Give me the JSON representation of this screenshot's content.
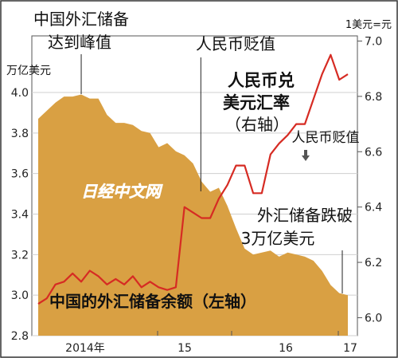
{
  "chart_data": {
    "type": "area+line",
    "left_axis": {
      "unit_label": "万亿美元",
      "ticks": [
        "4.0",
        "3.8",
        "3.6",
        "3.4",
        "3.2",
        "3.0",
        "2.8"
      ],
      "range": [
        2.8,
        4.0
      ]
    },
    "right_axis": {
      "unit_label": "1美元=元",
      "ticks": [
        "7.0",
        "6.8",
        "6.6",
        "6.4",
        "6.2",
        "6.0"
      ],
      "range": [
        5.935,
        7.01
      ]
    },
    "x_axis": {
      "ticks": [
        "2014年",
        "15",
        "16",
        "17"
      ]
    },
    "series": [
      {
        "name": "中国的外汇储备余额（左轴）",
        "type": "area",
        "axis": "left",
        "x": [
          "2014-01",
          "2014-02",
          "2014-03",
          "2014-04",
          "2014-05",
          "2014-06",
          "2014-07",
          "2014-08",
          "2014-09",
          "2014-10",
          "2014-11",
          "2014-12",
          "2015-01",
          "2015-02",
          "2015-03",
          "2015-04",
          "2015-05",
          "2015-06",
          "2015-07",
          "2015-08",
          "2015-09",
          "2015-10",
          "2015-11",
          "2015-12",
          "2016-01",
          "2016-02",
          "2016-03",
          "2016-04",
          "2016-05",
          "2016-06",
          "2016-07",
          "2016-08",
          "2016-09",
          "2016-10",
          "2016-11",
          "2016-12",
          "2017-01"
        ],
        "values": [
          3.87,
          3.91,
          3.95,
          3.98,
          3.98,
          3.99,
          3.97,
          3.97,
          3.89,
          3.85,
          3.85,
          3.84,
          3.81,
          3.8,
          3.73,
          3.75,
          3.71,
          3.69,
          3.65,
          3.56,
          3.51,
          3.53,
          3.44,
          3.33,
          3.23,
          3.2,
          3.21,
          3.22,
          3.19,
          3.21,
          3.2,
          3.19,
          3.17,
          3.12,
          3.05,
          3.01,
          3.0
        ]
      },
      {
        "name": "人民币兑美元汇率（右轴）",
        "type": "line",
        "axis": "right",
        "x": [
          "2014-01",
          "2014-02",
          "2014-03",
          "2014-04",
          "2014-05",
          "2014-06",
          "2014-07",
          "2014-08",
          "2014-09",
          "2014-10",
          "2014-11",
          "2014-12",
          "2015-01",
          "2015-02",
          "2015-03",
          "2015-04",
          "2015-05",
          "2015-06",
          "2015-07",
          "2015-08",
          "2015-09",
          "2015-10",
          "2015-11",
          "2015-12",
          "2016-01",
          "2016-02",
          "2016-03",
          "2016-04",
          "2016-05",
          "2016-06",
          "2016-07",
          "2016-08",
          "2016-09",
          "2016-10",
          "2016-11",
          "2016-12",
          "2017-01"
        ],
        "values": [
          6.05,
          6.07,
          6.12,
          6.13,
          6.16,
          6.13,
          6.17,
          6.15,
          6.12,
          6.14,
          6.12,
          6.15,
          6.11,
          6.13,
          6.11,
          6.1,
          6.11,
          6.4,
          6.38,
          6.36,
          6.36,
          6.43,
          6.48,
          6.55,
          6.55,
          6.45,
          6.45,
          6.59,
          6.63,
          6.66,
          6.7,
          6.7,
          6.79,
          6.88,
          6.95,
          6.86,
          6.88
        ]
      }
    ],
    "annotations": [
      {
        "text_lines": [
          "中国外汇储备",
          "达到峰值"
        ],
        "x": "2014-06"
      },
      {
        "text_lines": [
          "人民币贬值"
        ],
        "x": "2015-08"
      },
      {
        "text_lines": [
          "人民币兑",
          "美元汇率",
          "（右轴）"
        ]
      },
      {
        "text_lines": [
          "人民币贬值"
        ],
        "x": "2016-10"
      },
      {
        "text_lines": [
          "外汇储备跌破",
          "3万亿美元"
        ],
        "x": "2017-01"
      },
      {
        "text_lines": [
          "中国的外汇储备余额（左轴）"
        ]
      }
    ],
    "watermark": "日经中文网",
    "colors": {
      "area": "#d9a043",
      "line": "#d62b23",
      "text": "#111111",
      "watermark": "#ffffff"
    }
  }
}
